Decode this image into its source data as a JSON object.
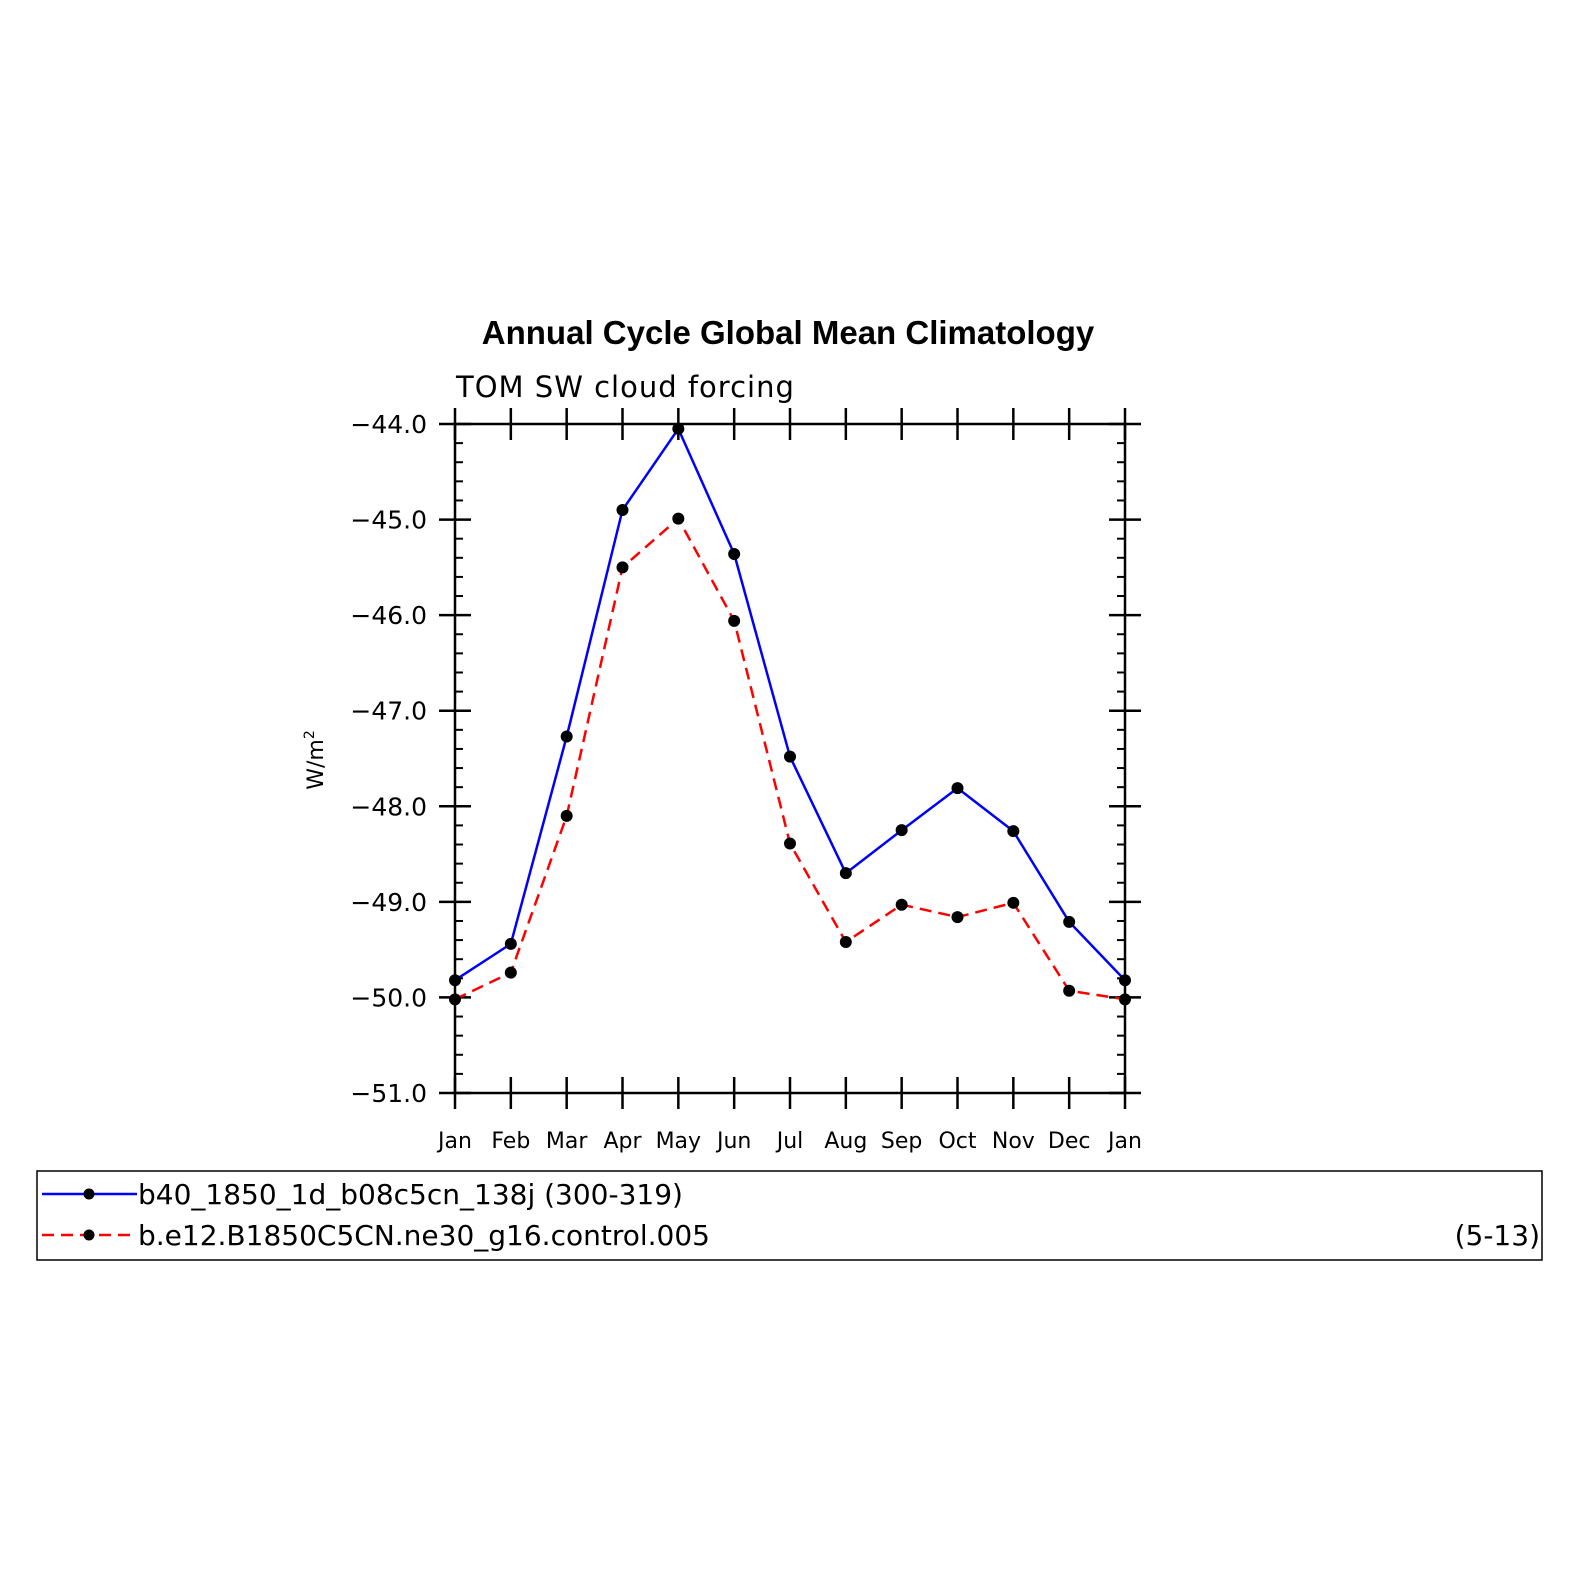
{
  "chart_data": {
    "type": "line",
    "title": "Annual Cycle Global Mean Climatology",
    "subtitle": "TOM SW cloud forcing",
    "ylabel": "W/m",
    "ylabel_superscript": "2",
    "ylim": [
      -51.0,
      -44.0
    ],
    "yticks": [
      "-44.0",
      "-45.0",
      "-46.0",
      "-47.0",
      "-48.0",
      "-49.0",
      "-50.0",
      "-51.0"
    ],
    "categories": [
      "Jan",
      "Feb",
      "Mar",
      "Apr",
      "May",
      "Jun",
      "Jul",
      "Aug",
      "Sep",
      "Oct",
      "Nov",
      "Dec",
      "Jan"
    ],
    "series": [
      {
        "name": "b40_1850_1d_b08c5cn_138j (300-319)",
        "color": "#0000ff",
        "dash": "solid",
        "values": [
          -49.82,
          -49.44,
          -47.27,
          -44.9,
          -44.05,
          -45.36,
          -47.48,
          -48.7,
          -48.25,
          -47.81,
          -48.26,
          -49.21,
          -49.82
        ]
      },
      {
        "name": "b.e12.B1850C5CN.ne30_g16.control.005",
        "name_suffix": "(5-13)",
        "color": "#ff0000",
        "dash": "dashed",
        "values": [
          -50.02,
          -49.74,
          -48.1,
          -45.5,
          -44.99,
          -46.06,
          -48.39,
          -49.42,
          -49.03,
          -49.16,
          -49.01,
          -49.93,
          -50.02
        ]
      }
    ],
    "marker_color": "#000000",
    "legend_placement": "bottom"
  }
}
